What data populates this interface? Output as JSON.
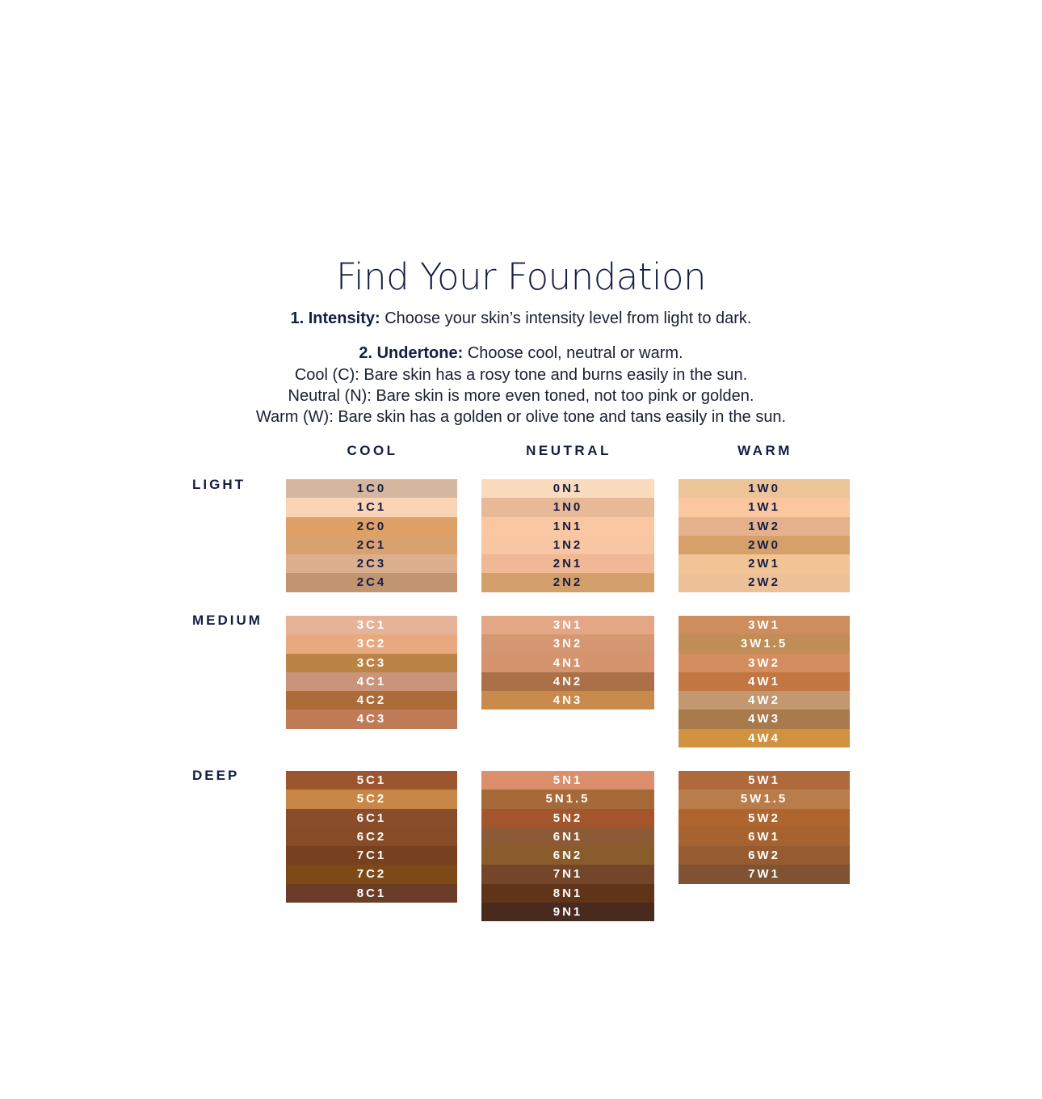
{
  "title": "Find Your Foundation",
  "intensity": {
    "label": "1. Intensity:",
    "text": " Choose your skin’s intensity level from light to dark."
  },
  "undertone": {
    "label": "2. Undertone:",
    "text": " Choose cool, neutral or warm."
  },
  "descriptions": [
    "Cool (C): Bare skin has a rosy tone and burns easily in the sun.",
    "Neutral (N): Bare skin is more even toned, not too pink or golden.",
    "Warm (W): Bare skin has a golden or olive tone and tans easily in the sun."
  ],
  "columns": [
    "COOL",
    "NEUTRAL",
    "WARM"
  ],
  "rows": [
    {
      "label": "LIGHT",
      "groups": [
        [
          {
            "code": "1C0",
            "color": "#d5b7a0"
          },
          {
            "code": "1C1",
            "color": "#fbd4b6"
          },
          {
            "code": "2C0",
            "color": "#dfa065"
          },
          {
            "code": "2C1",
            "color": "#d8a16e"
          },
          {
            "code": "2C3",
            "color": "#dcb08e"
          },
          {
            "code": "2C4",
            "color": "#c09570"
          }
        ],
        [
          {
            "code": "0N1",
            "color": "#fadbbd"
          },
          {
            "code": "1N0",
            "color": "#e7b996"
          },
          {
            "code": "1N1",
            "color": "#fac7a3"
          },
          {
            "code": "1N2",
            "color": "#f8c6a2"
          },
          {
            "code": "2N1",
            "color": "#f0b894"
          },
          {
            "code": "2N2",
            "color": "#d3a06c"
          }
        ],
        [
          {
            "code": "1W0",
            "color": "#ecc497"
          },
          {
            "code": "1W1",
            "color": "#fbc79e"
          },
          {
            "code": "1W2",
            "color": "#e4b18d"
          },
          {
            "code": "2W0",
            "color": "#d5a06a"
          },
          {
            "code": "2W1",
            "color": "#f2c394"
          },
          {
            "code": "2W2",
            "color": "#ecc198"
          }
        ]
      ]
    },
    {
      "label": "MEDIUM",
      "groups": [
        [
          {
            "code": "3C1",
            "color": "#e6b398"
          },
          {
            "code": "3C2",
            "color": "#e9a97f"
          },
          {
            "code": "3C3",
            "color": "#bb8345"
          },
          {
            "code": "4C1",
            "color": "#c9947a"
          },
          {
            "code": "4C2",
            "color": "#ac6c37"
          },
          {
            "code": "4C3",
            "color": "#bf7a57"
          }
        ],
        [
          {
            "code": "3N1",
            "color": "#e3a786"
          },
          {
            "code": "3N2",
            "color": "#d49771"
          },
          {
            "code": "4N1",
            "color": "#d5946d"
          },
          {
            "code": "4N2",
            "color": "#ab7047"
          },
          {
            "code": "4N3",
            "color": "#c88b4b"
          }
        ],
        [
          {
            "code": "3W1",
            "color": "#cd8d5c"
          },
          {
            "code": "3W1.5",
            "color": "#c18c55"
          },
          {
            "code": "3W2",
            "color": "#d48d5e"
          },
          {
            "code": "4W1",
            "color": "#c27642"
          },
          {
            "code": "4W2",
            "color": "#c39770"
          },
          {
            "code": "4W3",
            "color": "#a87a4c"
          },
          {
            "code": "4W4",
            "color": "#d0923f"
          }
        ]
      ]
    },
    {
      "label": "DEEP",
      "groups": [
        [
          {
            "code": "5C1",
            "color": "#9c552e"
          },
          {
            "code": "5C2",
            "color": "#c88747"
          },
          {
            "code": "6C1",
            "color": "#8a4d2b"
          },
          {
            "code": "6C2",
            "color": "#874c27"
          },
          {
            "code": "7C1",
            "color": "#77411f"
          },
          {
            "code": "7C2",
            "color": "#7d4917"
          },
          {
            "code": "8C1",
            "color": "#6b3d28"
          }
        ],
        [
          {
            "code": "5N1",
            "color": "#db8f6d"
          },
          {
            "code": "5N1.5",
            "color": "#a56a37"
          },
          {
            "code": "5N2",
            "color": "#a3562b"
          },
          {
            "code": "6N1",
            "color": "#8d5a36"
          },
          {
            "code": "6N2",
            "color": "#8a5c2b"
          },
          {
            "code": "7N1",
            "color": "#744629"
          },
          {
            "code": "8N1",
            "color": "#5f3419"
          },
          {
            "code": "9N1",
            "color": "#482a1f"
          }
        ],
        [
          {
            "code": "5W1",
            "color": "#b0693a"
          },
          {
            "code": "5W1.5",
            "color": "#b97d4b"
          },
          {
            "code": "5W2",
            "color": "#ae6530"
          },
          {
            "code": "6W1",
            "color": "#a6622f"
          },
          {
            "code": "6W2",
            "color": "#965c30"
          },
          {
            "code": "7W1",
            "color": "#7e5232"
          }
        ]
      ]
    }
  ]
}
